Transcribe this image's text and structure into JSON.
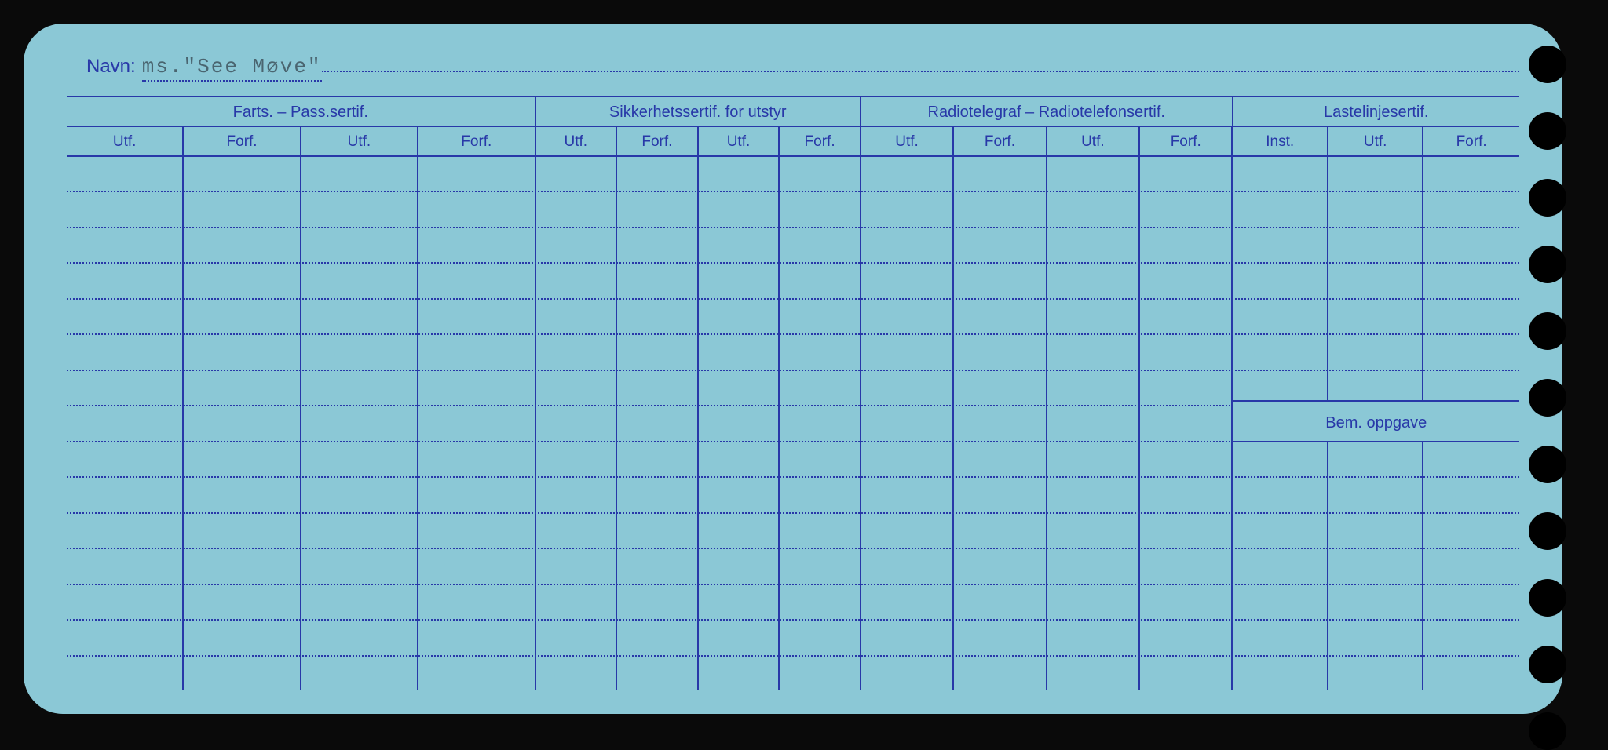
{
  "colors": {
    "card_bg": "#8bc8d6",
    "line": "#2838a8",
    "text": "#2838a8",
    "typed_text": "#4a6570",
    "page_bg": "#0a0a0a"
  },
  "navn": {
    "label": "Navn:",
    "value": "ms.\"See Møve\""
  },
  "groups": [
    {
      "label": "Farts. – Pass.sertif.",
      "width_pct": 32.3
    },
    {
      "label": "Sikkerhetssertif. for utstyr",
      "width_pct": 22.4
    },
    {
      "label": "Radiotelegraf – Radiotelefonsertif.",
      "width_pct": 25.6
    },
    {
      "label": "Lastelinjesertif.",
      "width_pct": 19.7
    }
  ],
  "sub_columns": [
    {
      "label": "Utf.",
      "group": 0,
      "width_pct": 8.075
    },
    {
      "label": "Forf.",
      "group": 0,
      "width_pct": 8.075
    },
    {
      "label": "Utf.",
      "group": 0,
      "width_pct": 8.075
    },
    {
      "label": "Forf.",
      "group": 0,
      "width_pct": 8.075
    },
    {
      "label": "Utf.",
      "group": 1,
      "width_pct": 5.6
    },
    {
      "label": "Forf.",
      "group": 1,
      "width_pct": 5.6
    },
    {
      "label": "Utf.",
      "group": 1,
      "width_pct": 5.6
    },
    {
      "label": "Forf.",
      "group": 1,
      "width_pct": 5.6
    },
    {
      "label": "Utf.",
      "group": 2,
      "width_pct": 6.4
    },
    {
      "label": "Forf.",
      "group": 2,
      "width_pct": 6.4
    },
    {
      "label": "Utf.",
      "group": 2,
      "width_pct": 6.4
    },
    {
      "label": "Forf.",
      "group": 2,
      "width_pct": 6.4
    },
    {
      "label": "Inst.",
      "group": 3,
      "width_pct": 6.566
    },
    {
      "label": "Utf.",
      "group": 3,
      "width_pct": 6.566
    },
    {
      "label": "Forf.",
      "group": 3,
      "width_pct": 6.566
    }
  ],
  "bem_label": "Bem. oppgave",
  "body_rows": 15,
  "punch_holes": 11,
  "typography": {
    "header_fontsize": 20,
    "subheader_fontsize": 19,
    "navn_label_fontsize": 24,
    "navn_value_fontsize": 26
  }
}
